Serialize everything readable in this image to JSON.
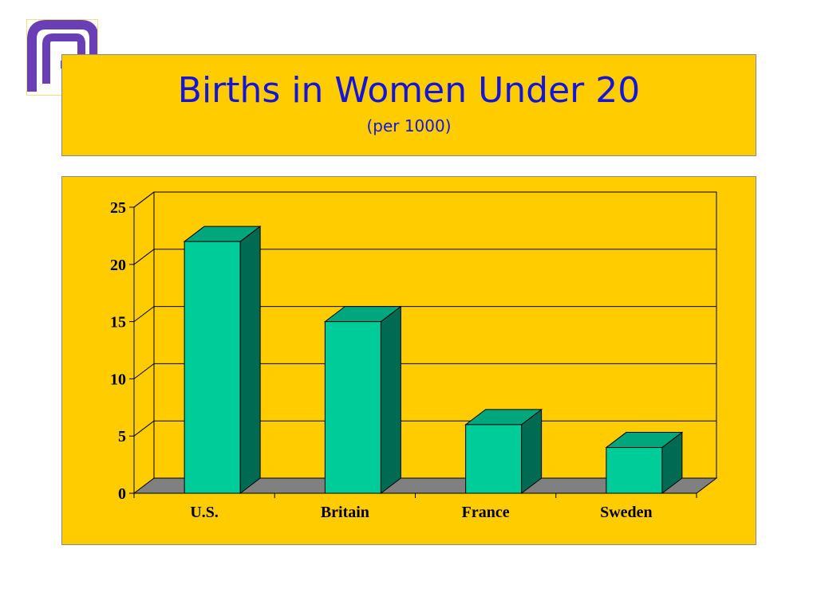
{
  "logo": {
    "name": "pp-logo-icon"
  },
  "colors": {
    "background": "#ffcc00",
    "title": "#1515d8",
    "bar_front": "#00cc99",
    "bar_side": "#006b52",
    "bar_top": "#00a77c",
    "floor": "#808080",
    "logo": "#6a3fb5"
  },
  "chart_data": {
    "type": "bar",
    "title": "Births in Women Under 20",
    "subtitle": "(per 1000)",
    "categories": [
      "U.S.",
      "Britain",
      "France",
      "Sweden"
    ],
    "values": [
      22,
      15,
      6,
      4
    ],
    "ylim": [
      0,
      25
    ],
    "yticks": [
      0,
      5,
      10,
      15,
      20,
      25
    ],
    "grid": true,
    "style": "3d"
  }
}
